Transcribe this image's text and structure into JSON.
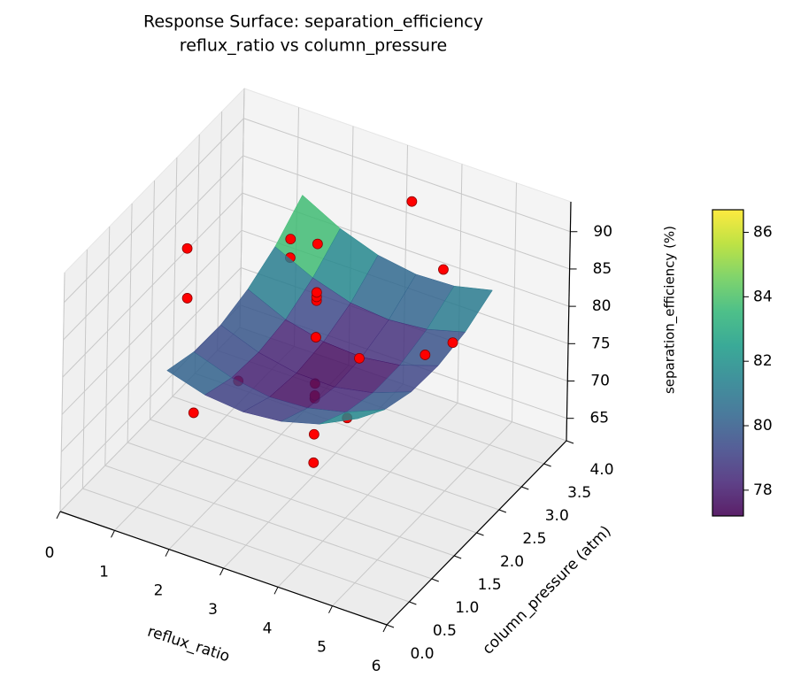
{
  "chart_data": {
    "type": "surface3d",
    "title": "Response Surface: separation_efficiency",
    "subtitle": "reflux_ratio vs column_pressure",
    "xlabel": "reflux_ratio",
    "ylabel": "column_pressure (atm)",
    "zlabel": "separation_efficiency (%)",
    "xlim": [
      0,
      6
    ],
    "xticks": [
      0,
      1,
      2,
      3,
      4,
      5,
      6
    ],
    "ylim": [
      0,
      4
    ],
    "yticks": [
      {
        "value": 0,
        "label": "0.0"
      },
      0.5,
      {
        "value": 1,
        "label": "1.0"
      },
      1.5,
      {
        "value": 2,
        "label": "2.0"
      },
      2.5,
      {
        "value": 3,
        "label": "3.0"
      },
      3.5,
      {
        "value": 4,
        "label": "4.0"
      }
    ],
    "zlim": [
      62,
      94
    ],
    "zticks": [
      65,
      70,
      75,
      80,
      85,
      90
    ],
    "grid": true,
    "colormap": "viridis",
    "surface": {
      "x": [
        1.5,
        2.2,
        2.9,
        3.6,
        4.3,
        5.0
      ],
      "y": [
        0.5,
        1.1,
        1.7,
        2.3,
        2.9,
        3.5
      ],
      "z": [
        [
          81.6,
          80.1,
          79.6,
          80.1,
          81.5,
          84.0
        ],
        [
          80.4,
          78.7,
          77.9,
          78.2,
          79.4,
          81.5
        ],
        [
          80.3,
          78.4,
          77.4,
          77.3,
          78.3,
          80.2
        ],
        [
          81.4,
          79.1,
          77.9,
          77.6,
          78.3,
          80.0
        ],
        [
          83.4,
          81.0,
          79.4,
          78.9,
          79.4,
          80.8
        ],
        [
          86.6,
          83.9,
          82.1,
          81.3,
          81.5,
          82.7
        ]
      ]
    },
    "scatter": {
      "color": "#ff0000",
      "x": [
        0.3,
        0.8,
        2,
        2,
        1.7,
        1.7,
        3,
        3,
        3,
        3,
        3,
        3,
        3,
        3,
        3,
        3,
        3.8,
        4,
        3.5,
        4.5,
        5,
        5.5
      ],
      "y": [
        2.4,
        1.8,
        0.5,
        1.5,
        3,
        3,
        2,
        2,
        2,
        2,
        2,
        2,
        2,
        2,
        2,
        2,
        2,
        1.5,
        3.5,
        3,
        2,
        2
      ],
      "z": [
        83.2,
        81.5,
        77.2,
        75.3,
        84.3,
        81.8,
        93.1,
        86.6,
        86.0,
        85.5,
        80.6,
        74.4,
        72.8,
        72.4,
        67.6,
        63.8,
        79.8,
        75.4,
        90.8,
        87.3,
        83.3,
        86.2
      ]
    },
    "colorbar": {
      "clim": [
        77.2,
        86.7
      ],
      "ticks": [
        78,
        80,
        82,
        84,
        86
      ]
    }
  }
}
